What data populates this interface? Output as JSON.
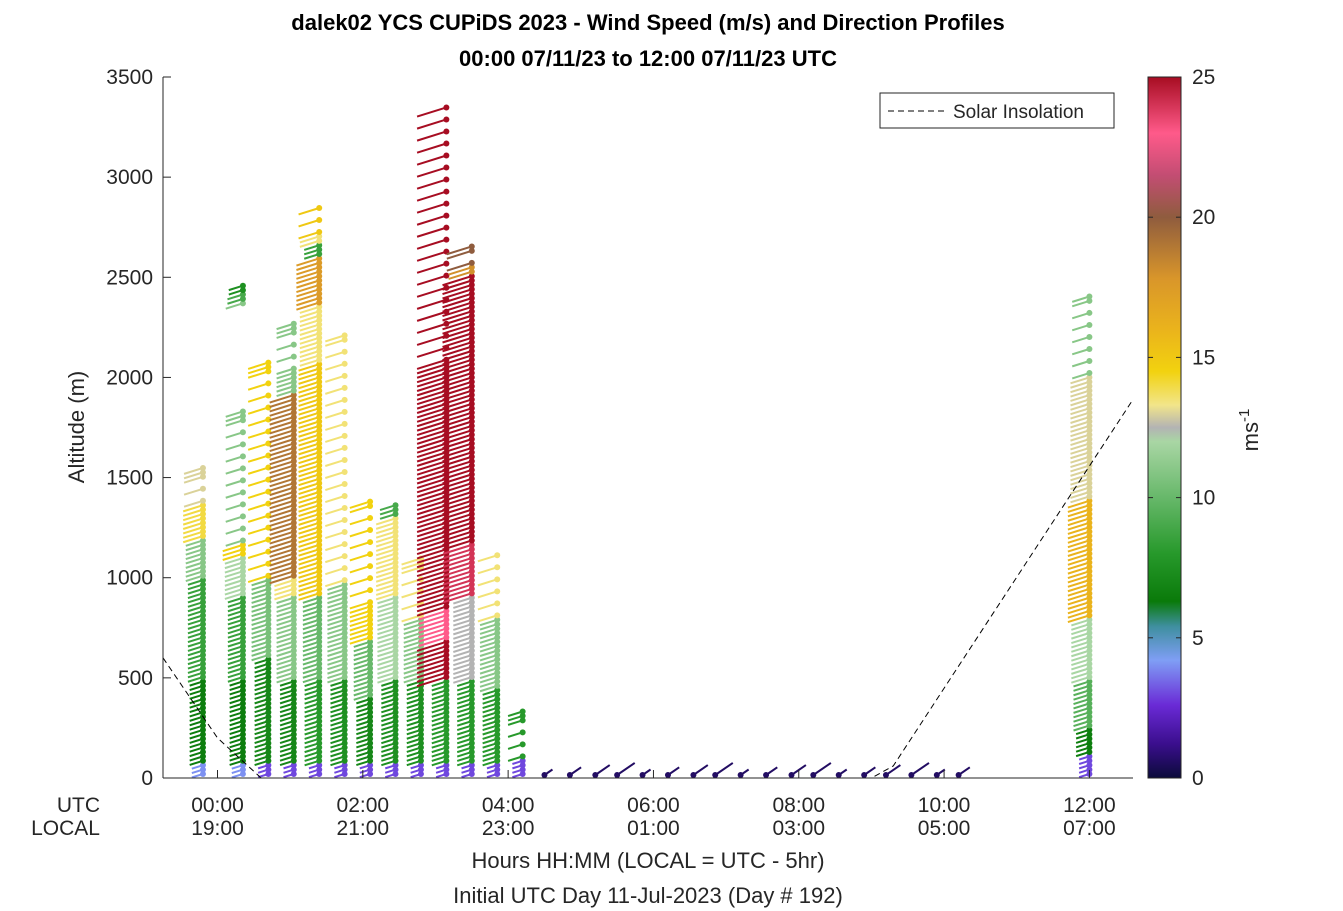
{
  "chart_data": {
    "type": "scatter",
    "title": "dalek02 YCS CUPiDS 2023 - Wind Speed (m/s) and Direction Profiles",
    "subtitle": "00:00 07/11/23 to 12:00 07/11/23  UTC",
    "ylabel": "Altitude (m)",
    "xlabel": "Hours HH:MM  (LOCAL = UTC - 5hr)",
    "xlabel2": "Initial UTC Day 11-Jul-2023 (Day # 192)",
    "xlim": [
      -0.75,
      12.6
    ],
    "ylim": [
      0,
      3500
    ],
    "yticks": [
      0,
      500,
      1000,
      1500,
      2000,
      2500,
      3000,
      3500
    ],
    "utc_label": "UTC",
    "local_label": "LOCAL",
    "xticks": [
      {
        "hour": 0,
        "utc": "00:00",
        "local": "19:00"
      },
      {
        "hour": 2,
        "utc": "02:00",
        "local": "21:00"
      },
      {
        "hour": 4,
        "utc": "04:00",
        "local": "23:00"
      },
      {
        "hour": 6,
        "utc": "06:00",
        "local": "01:00"
      },
      {
        "hour": 8,
        "utc": "08:00",
        "local": "03:00"
      },
      {
        "hour": 10,
        "utc": "10:00",
        "local": "05:00"
      },
      {
        "hour": 12,
        "utc": "12:00",
        "local": "07:00"
      }
    ],
    "legend": {
      "label": "Solar Insolation",
      "placement": "top-right"
    },
    "colorbar": {
      "label": "ms-1",
      "range": [
        0,
        25
      ],
      "ticks": [
        0,
        5,
        10,
        15,
        20,
        25
      ],
      "stops": [
        [
          0,
          "#0b0b3a"
        ],
        [
          1.2,
          "#3a0e8c"
        ],
        [
          2.6,
          "#6a2ad6"
        ],
        [
          4.2,
          "#7f9ef5"
        ],
        [
          5.4,
          "#3f8fa0"
        ],
        [
          6.3,
          "#0a7a0a"
        ],
        [
          8,
          "#27992b"
        ],
        [
          10,
          "#67b86a"
        ],
        [
          12,
          "#a9d6a4"
        ],
        [
          12.5,
          "#b3b3b3"
        ],
        [
          13.3,
          "#f2e58a"
        ],
        [
          14.5,
          "#f2d20f"
        ],
        [
          16,
          "#eab31c"
        ],
        [
          17.8,
          "#d9962a"
        ],
        [
          20,
          "#8f5c3e"
        ],
        [
          21.5,
          "#c34d73"
        ],
        [
          23,
          "#ff5a8a"
        ],
        [
          25,
          "#a70d22"
        ]
      ]
    },
    "solar_insolation": {
      "x": [
        -0.75,
        0.0,
        0.6,
        9.0,
        9.3,
        12.6
      ],
      "y": [
        600,
        200,
        0,
        0,
        60,
        1890
      ]
    },
    "profiles": [
      {
        "hour": -0.2,
        "top": 1550,
        "speed_layers": [
          [
            80,
            4
          ],
          [
            500,
            6.5
          ],
          [
            1000,
            8.5
          ],
          [
            1200,
            11
          ],
          [
            1380,
            14
          ],
          [
            1550,
            13
          ]
        ]
      },
      {
        "hour": 0.35,
        "top": 1840,
        "speed_layers": [
          [
            80,
            4
          ],
          [
            500,
            6.5
          ],
          [
            900,
            8.5
          ],
          [
            1100,
            12
          ],
          [
            1170,
            14.5
          ],
          [
            1840,
            11
          ]
        ]
      },
      {
        "hour": 0.35,
        "top": 2460,
        "speed_layers": [
          [
            2370,
            11
          ],
          [
            2420,
            9
          ],
          [
            2460,
            7.5
          ]
        ]
      },
      {
        "hour": 0.7,
        "top": 2080,
        "speed_layers": [
          [
            80,
            3
          ],
          [
            600,
            7
          ],
          [
            1000,
            10.5
          ],
          [
            2080,
            14.5
          ]
        ]
      },
      {
        "hour": 1.05,
        "top": 2270,
        "speed_layers": [
          [
            80,
            3
          ],
          [
            500,
            7
          ],
          [
            900,
            11
          ],
          [
            1000,
            13.5
          ],
          [
            1930,
            19
          ],
          [
            2030,
            11
          ],
          [
            2270,
            11
          ]
        ]
      },
      {
        "hour": 1.4,
        "top": 2850,
        "speed_layers": [
          [
            80,
            3
          ],
          [
            500,
            8
          ],
          [
            900,
            10
          ],
          [
            2080,
            15
          ],
          [
            2220,
            13.5
          ],
          [
            2370,
            13.5
          ],
          [
            2610,
            17.5
          ],
          [
            2660,
            8.5
          ],
          [
            2710,
            13.5
          ],
          [
            2850,
            15
          ]
        ]
      },
      {
        "hour": 1.75,
        "top": 2220,
        "speed_layers": [
          [
            80,
            3
          ],
          [
            500,
            7.5
          ],
          [
            900,
            11
          ],
          [
            980,
            11
          ],
          [
            2220,
            13.5
          ]
        ]
      },
      {
        "hour": 2.1,
        "top": 1380,
        "speed_layers": [
          [
            80,
            3
          ],
          [
            400,
            7
          ],
          [
            700,
            10
          ],
          [
            870,
            14.5
          ],
          [
            1380,
            14.5
          ]
        ]
      },
      {
        "hour": 2.45,
        "top": 1370,
        "speed_layers": [
          [
            80,
            3
          ],
          [
            500,
            7.5
          ],
          [
            900,
            12
          ],
          [
            1300,
            13.5
          ],
          [
            1370,
            9
          ]
        ]
      },
      {
        "hour": 2.8,
        "top": 1100,
        "speed_layers": [
          [
            80,
            3
          ],
          [
            500,
            7.5
          ],
          [
            800,
            11
          ],
          [
            1100,
            13.5
          ]
        ]
      },
      {
        "hour": 3.15,
        "top": 3360,
        "speed_layers": [
          [
            80,
            3
          ],
          [
            500,
            8
          ],
          [
            700,
            25
          ],
          [
            850,
            23
          ],
          [
            1000,
            25
          ],
          [
            1300,
            25
          ],
          [
            2080,
            25
          ],
          [
            3360,
            25
          ]
        ]
      },
      {
        "hour": 3.5,
        "top": 2660,
        "speed_layers": [
          [
            80,
            3
          ],
          [
            500,
            8
          ],
          [
            900,
            12.5
          ],
          [
            1170,
            24
          ],
          [
            1790,
            25
          ],
          [
            2510,
            25
          ],
          [
            2550,
            18
          ],
          [
            2660,
            20
          ]
        ]
      },
      {
        "hour": 3.85,
        "top": 1120,
        "speed_layers": [
          [
            80,
            3
          ],
          [
            450,
            8
          ],
          [
            800,
            11
          ],
          [
            1120,
            13.5
          ]
        ]
      },
      {
        "hour": 4.2,
        "top": 340,
        "speed_layers": [
          [
            100,
            3
          ],
          [
            340,
            8
          ]
        ]
      },
      {
        "hour": 12.0,
        "top": 2420,
        "speed_layers": [
          [
            120,
            3
          ],
          [
            250,
            6.5
          ],
          [
            500,
            9.5
          ],
          [
            800,
            12
          ],
          [
            1400,
            16
          ],
          [
            2000,
            13
          ],
          [
            2420,
            11
          ]
        ]
      }
    ],
    "surface_barbs_hours": [
      4.5,
      4.85,
      5.2,
      5.5,
      5.85,
      6.2,
      6.55,
      6.85,
      7.2,
      7.55,
      7.9,
      8.2,
      8.55,
      8.9,
      9.2,
      9.55,
      9.9,
      10.2
    ]
  }
}
